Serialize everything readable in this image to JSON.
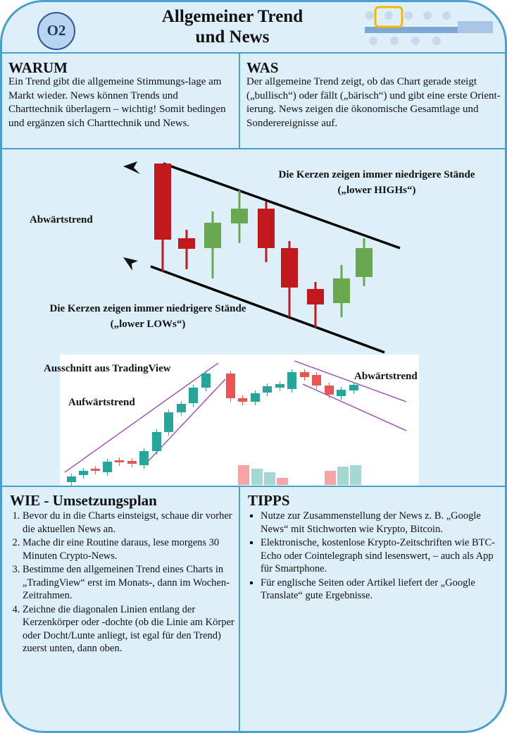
{
  "header": {
    "badge": "O2",
    "title_lines": [
      "Allgemeiner Trend",
      "und News"
    ]
  },
  "warum": {
    "heading": "WARUM",
    "text": "Ein Trend gibt die allgemeine Stimmungs-lage am Markt wieder. News können Trends und Charttechnik überlagern – wichtig! Somit bedingen und ergänzen sich Charttechnik und News."
  },
  "was": {
    "heading": "WAS",
    "text": "Der allgemeine Trend zeigt, ob das Chart gerade steigt („bullisch“) oder fällt („bärisch“) und gibt eine erste Orient-ierung. News zeigen die ökonomische Gesamtlage und Sonderereignisse auf."
  },
  "illustration": {
    "label": "Abwärtstrend",
    "top_note": "Die Kerzen zeigen immer niedrigere Stände („lower HIGHs“)",
    "bottom_note": "Die Kerzen zeigen immer niedrigere Stände („lower LOWs“)"
  },
  "tradingview": {
    "caption": "Ausschnitt aus TradingView",
    "up_label": "Aufwärtstrend",
    "down_label": "Abwärtstrend"
  },
  "wie": {
    "heading": "WIE - Umsetzungsplan",
    "items": [
      "Bevor du in die Charts einsteigst, schaue dir vorher die aktuellen News an.",
      "Mache dir eine Routine daraus, lese morgens 30 Minuten Crypto-News.",
      "Bestimme den allgemeinen Trend eines Charts in „TradingView“ erst im Monats-, dann im Wochen-Zeitrahmen.",
      "Zeichne die diagonalen Linien entlang der Kerzenkörper oder -dochte (ob die Linie am Körper oder Docht/Lunte anliegt, ist egal für den Trend) zuerst unten, dann oben."
    ]
  },
  "tipps": {
    "heading": "TIPPS",
    "items": [
      "Nutze zur Zusammenstellung der News z. B. „Google News“ mit Stichworten wie Krypto, Bitcoin.",
      "Elektronische, kostenlose Krypto-Zeitschriften wie BTC-Echo oder Cointelegraph sind lesenswert, – auch als App für Smartphone.",
      "Für englische Seiten oder Artikel liefert der „Google Translate“ gute Ergebnisse."
    ]
  }
}
